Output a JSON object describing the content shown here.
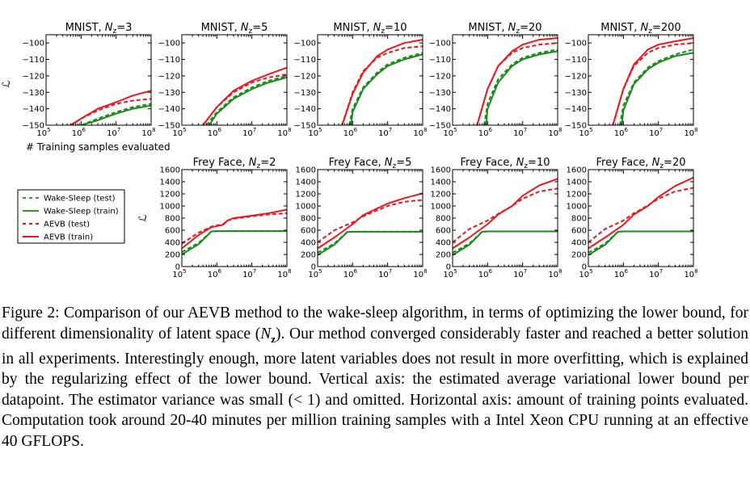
{
  "figure": {
    "x_axis_label": "# Training samples evaluated",
    "y_axis_symbol": "ℒ",
    "legend": [
      {
        "label": "Wake-Sleep (test)",
        "color": "#2ca02c",
        "dashed": true
      },
      {
        "label": "Wake-Sleep (train)",
        "color": "#2ca02c",
        "dashed": false
      },
      {
        "label": "AEVB (test)",
        "color": "#e31a1c",
        "dashed": true
      },
      {
        "label": "AEVB (train)",
        "color": "#e31a1c",
        "dashed": false
      }
    ],
    "colors": {
      "wake_sleep": "#1a8a1a",
      "aevb": "#e8191f"
    }
  },
  "chart_data": [
    {
      "type": "line",
      "title": "MNIST, Nz=3",
      "title_main": "MNIST, N",
      "title_sub": "z",
      "title_tail": "=3",
      "xscale": "log",
      "xlim": [
        100000,
        100000000
      ],
      "ylim": [
        -150,
        -95
      ],
      "yticks": [
        -150,
        -140,
        -130,
        -120,
        -110,
        -100
      ],
      "series": [
        {
          "name": "Wake-Sleep (test)",
          "x": [
            1000000,
            3000000,
            10000000,
            30000000,
            100000000
          ],
          "y": [
            -150,
            -146,
            -142,
            -139,
            -137
          ]
        },
        {
          "name": "Wake-Sleep (train)",
          "x": [
            1000000,
            3000000,
            10000000,
            30000000,
            100000000
          ],
          "y": [
            -150,
            -147,
            -143,
            -140,
            -138
          ]
        },
        {
          "name": "AEVB (test)",
          "x": [
            500000,
            1000000,
            3000000,
            10000000,
            30000000,
            100000000
          ],
          "y": [
            -150,
            -146,
            -141,
            -137,
            -135,
            -134
          ]
        },
        {
          "name": "AEVB (train)",
          "x": [
            500000,
            1000000,
            3000000,
            10000000,
            30000000,
            100000000
          ],
          "y": [
            -150,
            -146,
            -140,
            -136,
            -132,
            -129
          ]
        }
      ]
    },
    {
      "type": "line",
      "title": "MNIST, Nz=5",
      "title_main": "MNIST, N",
      "title_sub": "z",
      "title_tail": "=5",
      "xscale": "log",
      "xlim": [
        100000,
        100000000
      ],
      "ylim": [
        -150,
        -95
      ],
      "yticks": [
        -150,
        -140,
        -130,
        -120,
        -110,
        -100
      ],
      "series": [
        {
          "name": "Wake-Sleep (test)",
          "x": [
            500000,
            1000000,
            3000000,
            10000000,
            30000000,
            100000000
          ],
          "y": [
            -150,
            -142,
            -133,
            -127,
            -123,
            -120
          ]
        },
        {
          "name": "Wake-Sleep (train)",
          "x": [
            600000,
            1000000,
            3000000,
            10000000,
            30000000,
            100000000
          ],
          "y": [
            -150,
            -143,
            -134,
            -128,
            -124,
            -121
          ]
        },
        {
          "name": "AEVB (test)",
          "x": [
            400000,
            1000000,
            3000000,
            10000000,
            30000000,
            100000000
          ],
          "y": [
            -150,
            -139,
            -130,
            -124,
            -121,
            -119
          ]
        },
        {
          "name": "AEVB (train)",
          "x": [
            400000,
            1000000,
            3000000,
            10000000,
            30000000,
            100000000
          ],
          "y": [
            -150,
            -139,
            -129,
            -123,
            -119,
            -115
          ]
        }
      ]
    },
    {
      "type": "line",
      "title": "MNIST, Nz=10",
      "title_main": "MNIST, N",
      "title_sub": "z",
      "title_tail": "=10",
      "xscale": "log",
      "xlim": [
        100000,
        100000000
      ],
      "ylim": [
        -150,
        -95
      ],
      "yticks": [
        -150,
        -140,
        -130,
        -120,
        -110,
        -100
      ],
      "series": [
        {
          "name": "Wake-Sleep (test)",
          "x": [
            800000,
            1000000,
            2000000,
            5000000,
            10000000,
            30000000,
            100000000
          ],
          "y": [
            -150,
            -140,
            -127,
            -118,
            -113,
            -109,
            -106
          ]
        },
        {
          "name": "Wake-Sleep (train)",
          "x": [
            900000,
            1000000,
            2000000,
            5000000,
            10000000,
            30000000,
            100000000
          ],
          "y": [
            -150,
            -142,
            -128,
            -119,
            -114,
            -110,
            -107
          ]
        },
        {
          "name": "AEVB (test)",
          "x": [
            500000,
            1000000,
            2000000,
            5000000,
            10000000,
            30000000,
            100000000
          ],
          "y": [
            -150,
            -130,
            -117,
            -109,
            -106,
            -103,
            -102
          ]
        },
        {
          "name": "AEVB (train)",
          "x": [
            500000,
            1000000,
            2000000,
            5000000,
            10000000,
            30000000,
            100000000
          ],
          "y": [
            -150,
            -131,
            -118,
            -108,
            -104,
            -100,
            -98
          ]
        }
      ]
    },
    {
      "type": "line",
      "title": "MNIST, Nz=20",
      "title_main": "MNIST, N",
      "title_sub": "z",
      "title_tail": "=20",
      "xscale": "log",
      "xlim": [
        100000,
        100000000
      ],
      "ylim": [
        -150,
        -95
      ],
      "yticks": [
        -150,
        -140,
        -130,
        -120,
        -110,
        -100
      ],
      "series": [
        {
          "name": "Wake-Sleep (test)",
          "x": [
            800000,
            1000000,
            2000000,
            5000000,
            10000000,
            30000000,
            100000000
          ],
          "y": [
            -150,
            -137,
            -122,
            -113,
            -109,
            -106,
            -104
          ]
        },
        {
          "name": "Wake-Sleep (train)",
          "x": [
            900000,
            1000000,
            2000000,
            5000000,
            10000000,
            30000000,
            100000000
          ],
          "y": [
            -150,
            -140,
            -124,
            -114,
            -110,
            -107,
            -105
          ]
        },
        {
          "name": "AEVB (test)",
          "x": [
            500000,
            1000000,
            2000000,
            5000000,
            10000000,
            30000000,
            100000000
          ],
          "y": [
            -150,
            -128,
            -114,
            -106,
            -103,
            -101,
            -100
          ]
        },
        {
          "name": "AEVB (train)",
          "x": [
            500000,
            1000000,
            2000000,
            5000000,
            10000000,
            30000000,
            100000000
          ],
          "y": [
            -150,
            -128,
            -114,
            -105,
            -101,
            -98,
            -97
          ]
        }
      ]
    },
    {
      "type": "line",
      "title": "MNIST, Nz=200",
      "title_main": "MNIST, N",
      "title_sub": "z",
      "title_tail": "=200",
      "xscale": "log",
      "xlim": [
        100000,
        100000000
      ],
      "ylim": [
        -150,
        -95
      ],
      "yticks": [
        -150,
        -140,
        -130,
        -120,
        -110,
        -100
      ],
      "series": [
        {
          "name": "Wake-Sleep (test)",
          "x": [
            800000,
            1000000,
            2000000,
            5000000,
            10000000,
            30000000,
            100000000
          ],
          "y": [
            -150,
            -138,
            -124,
            -115,
            -111,
            -107,
            -104
          ]
        },
        {
          "name": "Wake-Sleep (train)",
          "x": [
            900000,
            1000000,
            2000000,
            5000000,
            10000000,
            30000000,
            100000000
          ],
          "y": [
            -150,
            -141,
            -125,
            -116,
            -112,
            -108,
            -106
          ]
        },
        {
          "name": "AEVB (test)",
          "x": [
            500000,
            1000000,
            2000000,
            5000000,
            10000000,
            30000000,
            100000000
          ],
          "y": [
            -150,
            -128,
            -114,
            -106,
            -103,
            -101,
            -100
          ]
        },
        {
          "name": "AEVB (train)",
          "x": [
            500000,
            1000000,
            2000000,
            5000000,
            10000000,
            30000000,
            100000000
          ],
          "y": [
            -150,
            -128,
            -113,
            -104,
            -101,
            -99,
            -97
          ]
        }
      ]
    },
    {
      "type": "line",
      "title": "Frey Face, Nz=2",
      "title_main": "Frey Face, N",
      "title_sub": "z",
      "title_tail": "=2",
      "xscale": "log",
      "xlim": [
        100000,
        100000000
      ],
      "ylim": [
        0,
        1600
      ],
      "yticks": [
        0,
        200,
        400,
        600,
        800,
        1000,
        1200,
        1400,
        1600
      ],
      "series": [
        {
          "name": "Wake-Sleep (test)",
          "x": [
            100000,
            300000,
            700000,
            1000000,
            100000000
          ],
          "y": [
            240,
            390,
            580,
            585,
            585
          ]
        },
        {
          "name": "Wake-Sleep (train)",
          "x": [
            100000,
            300000,
            700000,
            1000000,
            100000000
          ],
          "y": [
            200,
            370,
            580,
            585,
            585
          ]
        },
        {
          "name": "AEVB (test)",
          "x": [
            100000,
            300000,
            700000,
            1500000,
            2000000,
            3000000,
            10000000,
            30000000,
            100000000
          ],
          "y": [
            380,
            560,
            660,
            700,
            760,
            790,
            830,
            860,
            880
          ]
        },
        {
          "name": "AEVB (train)",
          "x": [
            100000,
            300000,
            700000,
            1500000,
            2000000,
            3000000,
            10000000,
            30000000,
            100000000
          ],
          "y": [
            300,
            520,
            650,
            690,
            760,
            800,
            840,
            880,
            940
          ]
        }
      ]
    },
    {
      "type": "line",
      "title": "Frey Face, Nz=5",
      "title_main": "Frey Face, N",
      "title_sub": "z",
      "title_tail": "=5",
      "xscale": "log",
      "xlim": [
        100000,
        100000000
      ],
      "ylim": [
        0,
        1600
      ],
      "yticks": [
        0,
        200,
        400,
        600,
        800,
        1000,
        1200,
        1400,
        1600
      ],
      "series": [
        {
          "name": "Wake-Sleep (test)",
          "x": [
            100000,
            300000,
            700000,
            1000000,
            100000000
          ],
          "y": [
            230,
            380,
            570,
            575,
            575
          ]
        },
        {
          "name": "Wake-Sleep (train)",
          "x": [
            100000,
            300000,
            700000,
            1000000,
            100000000
          ],
          "y": [
            190,
            360,
            570,
            575,
            575
          ]
        },
        {
          "name": "AEVB (test)",
          "x": [
            100000,
            300000,
            1000000,
            2000000,
            5000000,
            10000000,
            30000000,
            100000000
          ],
          "y": [
            400,
            600,
            730,
            830,
            930,
            1000,
            1070,
            1100
          ]
        },
        {
          "name": "AEVB (train)",
          "x": [
            100000,
            300000,
            1000000,
            2000000,
            5000000,
            10000000,
            30000000,
            100000000
          ],
          "y": [
            300,
            480,
            700,
            850,
            960,
            1040,
            1130,
            1210
          ]
        }
      ]
    },
    {
      "type": "line",
      "title": "Frey Face, Nz=10",
      "title_main": "Frey Face, N",
      "title_sub": "z",
      "title_tail": "=10",
      "xscale": "log",
      "xlim": [
        100000,
        100000000
      ],
      "ylim": [
        0,
        1600
      ],
      "yticks": [
        0,
        200,
        400,
        600,
        800,
        1000,
        1200,
        1400,
        1600
      ],
      "series": [
        {
          "name": "Wake-Sleep (test)",
          "x": [
            100000,
            300000,
            700000,
            1000000,
            100000000
          ],
          "y": [
            230,
            380,
            575,
            580,
            580
          ]
        },
        {
          "name": "Wake-Sleep (train)",
          "x": [
            100000,
            300000,
            700000,
            1000000,
            100000000
          ],
          "y": [
            190,
            360,
            575,
            580,
            580
          ]
        },
        {
          "name": "AEVB (test)",
          "x": [
            100000,
            300000,
            1000000,
            2000000,
            5000000,
            10000000,
            30000000,
            100000000
          ],
          "y": [
            400,
            620,
            760,
            870,
            1000,
            1120,
            1240,
            1290
          ]
        },
        {
          "name": "AEVB (train)",
          "x": [
            100000,
            300000,
            1000000,
            2000000,
            5000000,
            10000000,
            30000000,
            100000000
          ],
          "y": [
            300,
            480,
            700,
            860,
            1000,
            1170,
            1340,
            1450
          ]
        }
      ]
    },
    {
      "type": "line",
      "title": "Frey Face, Nz=20",
      "title_main": "Frey Face, N",
      "title_sub": "z",
      "title_tail": "=20",
      "xscale": "log",
      "xlim": [
        100000,
        100000000
      ],
      "ylim": [
        0,
        1600
      ],
      "yticks": [
        0,
        200,
        400,
        600,
        800,
        1000,
        1200,
        1400,
        1600
      ],
      "series": [
        {
          "name": "Wake-Sleep (test)",
          "x": [
            100000,
            300000,
            700000,
            1000000,
            100000000
          ],
          "y": [
            230,
            380,
            575,
            580,
            580
          ]
        },
        {
          "name": "Wake-Sleep (train)",
          "x": [
            100000,
            300000,
            700000,
            1000000,
            100000000
          ],
          "y": [
            190,
            360,
            575,
            580,
            580
          ]
        },
        {
          "name": "AEVB (test)",
          "x": [
            100000,
            300000,
            1000000,
            2000000,
            5000000,
            10000000,
            30000000,
            100000000
          ],
          "y": [
            400,
            620,
            760,
            880,
            1010,
            1120,
            1240,
            1300
          ]
        },
        {
          "name": "AEVB (train)",
          "x": [
            100000,
            300000,
            1000000,
            2000000,
            5000000,
            10000000,
            30000000,
            100000000
          ],
          "y": [
            300,
            480,
            690,
            860,
            1000,
            1150,
            1330,
            1470
          ]
        }
      ]
    }
  ],
  "caption": {
    "label": "Figure 2:",
    "text_before_symbol": "Comparison of our AEVB method to the wake-sleep algorithm, in terms of optimizing the lower bound, for different dimensionality of latent space (",
    "symbol_main": "N",
    "symbol_sub": "z",
    "text_after_symbol": "). Our method converged considerably faster and reached a better solution in all experiments. Interestingly enough, more latent variables does not result in more overfitting, which is explained by the regularizing effect of the lower bound. Vertical axis: the estimated average variational lower bound per datapoint. The estimator variance was small (< 1) and omitted. Horizontal axis: amount of training points evaluated. Computation took around 20-40 minutes per million training samples with a Intel Xeon CPU running at an effective 40 GFLOPS."
  }
}
